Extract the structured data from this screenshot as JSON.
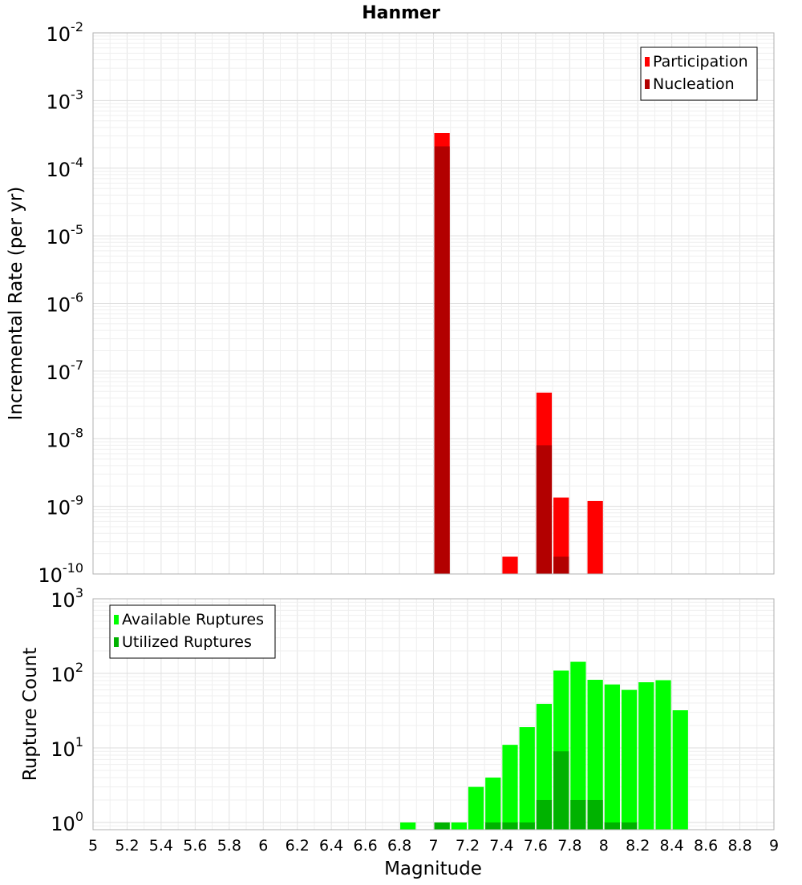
{
  "chart_data": [
    {
      "type": "bar",
      "title": "Hanmer",
      "xlabel": "Magnitude",
      "ylabel": "Incremental Rate (per yr)",
      "y_scale": "log",
      "ylim": [
        1e-10,
        0.01
      ],
      "xlim": [
        5,
        9
      ],
      "bin_width": 0.1,
      "grid": true,
      "legend_position": "top-right",
      "series": [
        {
          "name": "Participation",
          "color": "#ff0000",
          "x": [
            7.05,
            7.45,
            7.65,
            7.75,
            7.95
          ],
          "values": [
            0.00033,
            1.8e-10,
            4.8e-08,
            1.35e-09,
            1.2e-09
          ]
        },
        {
          "name": "Nucleation",
          "color": "#b20000",
          "x": [
            7.05,
            7.65,
            7.75
          ],
          "values": [
            0.00021,
            8e-09,
            1.8e-10
          ]
        }
      ]
    },
    {
      "type": "bar",
      "xlabel": "Magnitude",
      "ylabel": "Rupture Count",
      "y_scale": "log",
      "ylim": [
        0.8,
        1000
      ],
      "xlim": [
        5,
        9
      ],
      "bin_width": 0.1,
      "grid": true,
      "legend_position": "top-left",
      "series": [
        {
          "name": "Available Ruptures",
          "color": "#00ff00",
          "x": [
            6.85,
            7.05,
            7.15,
            7.25,
            7.35,
            7.45,
            7.55,
            7.65,
            7.75,
            7.85,
            7.95,
            8.05,
            8.15,
            8.25,
            8.35,
            8.45
          ],
          "values": [
            1,
            1,
            1,
            3,
            4,
            11,
            19,
            39,
            109,
            143,
            82,
            71,
            60,
            76,
            81,
            32
          ]
        },
        {
          "name": "Utilized Ruptures",
          "color": "#00b200",
          "x": [
            7.05,
            7.35,
            7.45,
            7.55,
            7.65,
            7.75,
            7.85,
            7.95,
            8.05,
            8.15
          ],
          "values": [
            1,
            1,
            1,
            1,
            2,
            9,
            2,
            2,
            1,
            1
          ]
        }
      ]
    }
  ],
  "x_ticks": [
    "5",
    "5.2",
    "5.4",
    "5.6",
    "5.8",
    "6",
    "6.2",
    "6.4",
    "6.6",
    "6.8",
    "7",
    "7.2",
    "7.4",
    "7.6",
    "7.8",
    "8",
    "8.2",
    "8.4",
    "8.6",
    "8.8",
    "9"
  ],
  "top_y_ticks": [
    {
      "base": "10",
      "exp": "-2"
    },
    {
      "base": "10",
      "exp": "-3"
    },
    {
      "base": "10",
      "exp": "-4"
    },
    {
      "base": "10",
      "exp": "-5"
    },
    {
      "base": "10",
      "exp": "-6"
    },
    {
      "base": "10",
      "exp": "-7"
    },
    {
      "base": "10",
      "exp": "-8"
    },
    {
      "base": "10",
      "exp": "-9"
    },
    {
      "base": "10",
      "exp": "-10"
    }
  ],
  "bottom_y_ticks": [
    {
      "base": "10",
      "exp": "3"
    },
    {
      "base": "10",
      "exp": "2"
    },
    {
      "base": "10",
      "exp": "1"
    },
    {
      "base": "10",
      "exp": "0"
    }
  ]
}
